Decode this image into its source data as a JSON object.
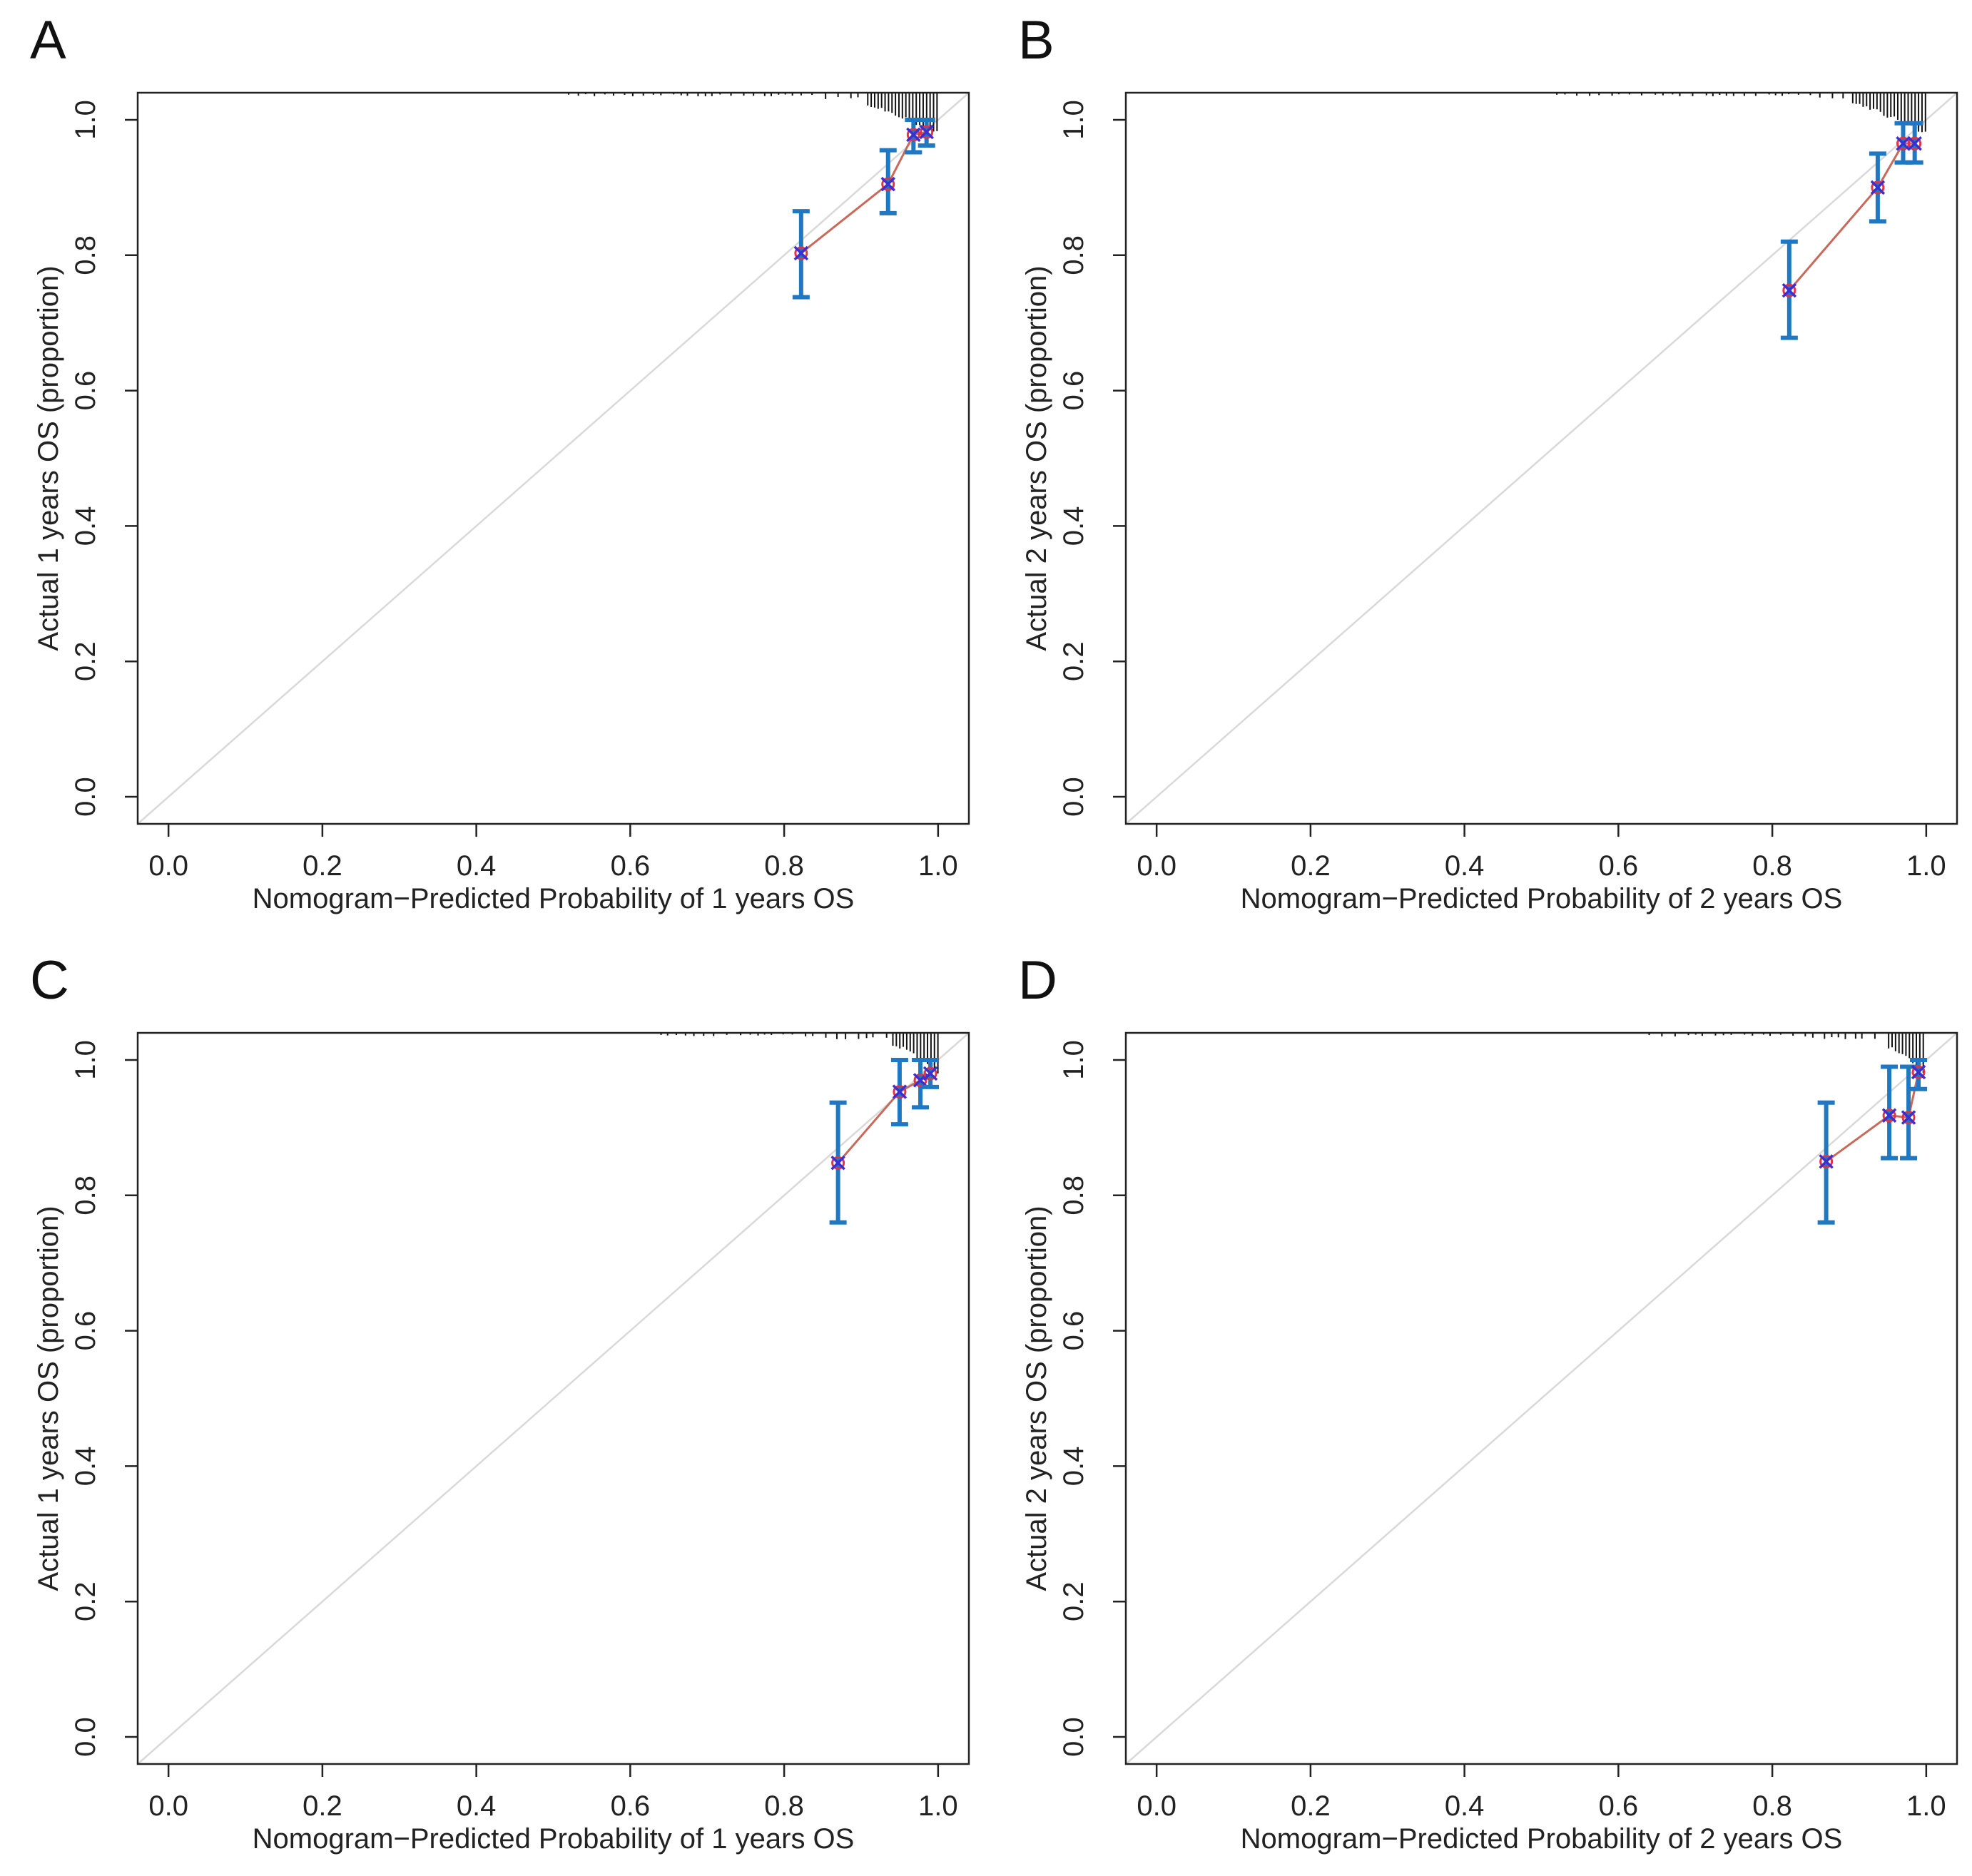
{
  "colors": {
    "frame": "#222222",
    "ideal_line": "#d9d9d9",
    "calibration_line": "#c86a5a",
    "error_bar": "#1f78c1",
    "point_circle": "#e0334a",
    "point_cross": "#3a2fd0",
    "rug": "#111111"
  },
  "chart_data": [
    {
      "panel": "A",
      "type": "line",
      "title": "",
      "xlabel": "Nomogram−Predicted Probability of 1 years OS",
      "ylabel": "Actual 1 years OS (proportion)",
      "xlim": [
        -0.04,
        1.04
      ],
      "ylim": [
        -0.04,
        1.04
      ],
      "x_ticks": [
        "0.0",
        "0.2",
        "0.4",
        "0.6",
        "0.8",
        "1.0"
      ],
      "y_ticks": [
        "0.0",
        "0.2",
        "0.4",
        "0.6",
        "0.8",
        "1.0"
      ],
      "ideal_line": [
        [
          -0.04,
          -0.04
        ],
        [
          1.04,
          1.04
        ]
      ],
      "points": [
        {
          "x": 0.822,
          "y": 0.803,
          "lower": 0.738,
          "upper": 0.865
        },
        {
          "x": 0.935,
          "y": 0.905,
          "lower": 0.862,
          "upper": 0.955
        },
        {
          "x": 0.968,
          "y": 0.978,
          "lower": 0.952,
          "upper": 1.0
        },
        {
          "x": 0.985,
          "y": 0.982,
          "lower": 0.962,
          "upper": 1.0
        }
      ],
      "rug": {
        "start": 0.52,
        "end": 1.0,
        "dense_from": 0.9
      }
    },
    {
      "panel": "B",
      "type": "line",
      "title": "",
      "xlabel": "Nomogram−Predicted Probability of 2 years OS",
      "ylabel": "Actual 2 years OS (proportion)",
      "xlim": [
        -0.04,
        1.04
      ],
      "ylim": [
        -0.04,
        1.04
      ],
      "x_ticks": [
        "0.0",
        "0.2",
        "0.4",
        "0.6",
        "0.8",
        "1.0"
      ],
      "y_ticks": [
        "0.0",
        "0.2",
        "0.4",
        "0.6",
        "0.8",
        "1.0"
      ],
      "ideal_line": [
        [
          -0.04,
          -0.04
        ],
        [
          1.04,
          1.04
        ]
      ],
      "points": [
        {
          "x": 0.822,
          "y": 0.748,
          "lower": 0.678,
          "upper": 0.82
        },
        {
          "x": 0.937,
          "y": 0.9,
          "lower": 0.85,
          "upper": 0.95
        },
        {
          "x": 0.97,
          "y": 0.965,
          "lower": 0.937,
          "upper": 0.995
        },
        {
          "x": 0.985,
          "y": 0.965,
          "lower": 0.937,
          "upper": 0.995
        }
      ],
      "rug": {
        "start": 0.52,
        "end": 1.0,
        "dense_from": 0.9
      }
    },
    {
      "panel": "C",
      "type": "line",
      "title": "",
      "xlabel": "Nomogram−Predicted Probability of 1 years OS",
      "ylabel": "Actual 1 years OS (proportion)",
      "xlim": [
        -0.04,
        1.04
      ],
      "ylim": [
        -0.04,
        1.04
      ],
      "x_ticks": [
        "0.0",
        "0.2",
        "0.4",
        "0.6",
        "0.8",
        "1.0"
      ],
      "y_ticks": [
        "0.0",
        "0.2",
        "0.4",
        "0.6",
        "0.8",
        "1.0"
      ],
      "ideal_line": [
        [
          -0.04,
          -0.04
        ],
        [
          1.04,
          1.04
        ]
      ],
      "points": [
        {
          "x": 0.87,
          "y": 0.848,
          "lower": 0.76,
          "upper": 0.937
        },
        {
          "x": 0.95,
          "y": 0.953,
          "lower": 0.905,
          "upper": 1.0
        },
        {
          "x": 0.977,
          "y": 0.97,
          "lower": 0.93,
          "upper": 1.0
        },
        {
          "x": 0.99,
          "y": 0.98,
          "lower": 0.96,
          "upper": 1.0
        }
      ],
      "rug": {
        "start": 0.64,
        "end": 1.0,
        "dense_from": 0.94
      }
    },
    {
      "panel": "D",
      "type": "line",
      "title": "",
      "xlabel": "Nomogram−Predicted Probability of 2 years OS",
      "ylabel": "Actual 2 years OS (proportion)",
      "xlim": [
        -0.04,
        1.04
      ],
      "ylim": [
        -0.04,
        1.04
      ],
      "x_ticks": [
        "0.0",
        "0.2",
        "0.4",
        "0.6",
        "0.8",
        "1.0"
      ],
      "y_ticks": [
        "0.0",
        "0.2",
        "0.4",
        "0.6",
        "0.8",
        "1.0"
      ],
      "ideal_line": [
        [
          -0.04,
          -0.04
        ],
        [
          1.04,
          1.04
        ]
      ],
      "points": [
        {
          "x": 0.87,
          "y": 0.85,
          "lower": 0.76,
          "upper": 0.937
        },
        {
          "x": 0.952,
          "y": 0.918,
          "lower": 0.855,
          "upper": 0.99
        },
        {
          "x": 0.977,
          "y": 0.915,
          "lower": 0.855,
          "upper": 0.99
        },
        {
          "x": 0.99,
          "y": 0.982,
          "lower": 0.957,
          "upper": 1.0
        }
      ],
      "rug": {
        "start": 0.64,
        "end": 1.0,
        "dense_from": 0.94
      }
    }
  ]
}
